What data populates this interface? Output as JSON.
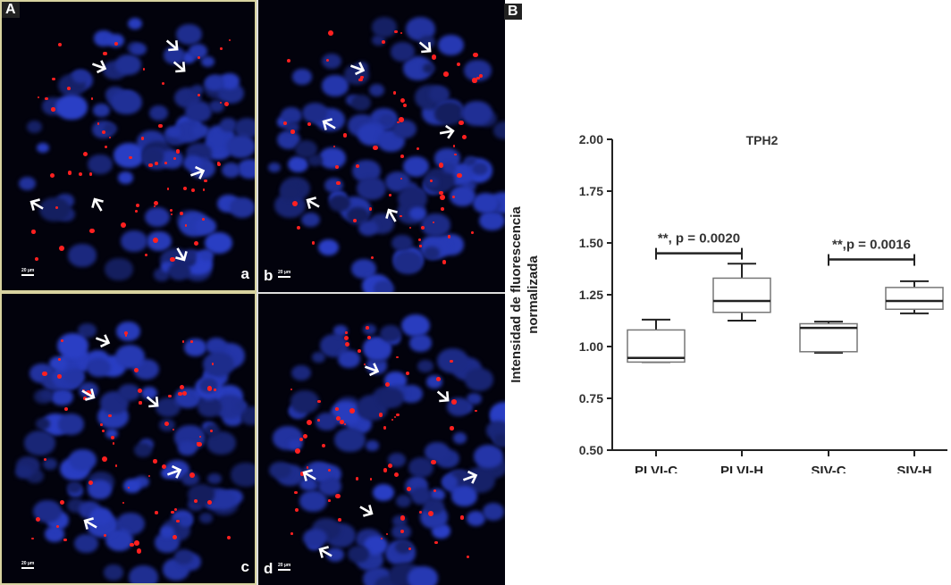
{
  "figure_labels": {
    "panel_A": "A",
    "panel_B": "B"
  },
  "subpanels": [
    {
      "label": "a",
      "scale_bar": "20 µm"
    },
    {
      "label": "b",
      "scale_bar": "20 µm"
    },
    {
      "label": "c",
      "scale_bar": "20 µm"
    },
    {
      "label": "d",
      "scale_bar": "20 µm"
    }
  ],
  "colors": {
    "nuclei_blue": "#2a3aa8",
    "tph2_red": "#ff2020",
    "background": "#02020c",
    "arrow": "#ffffff"
  },
  "chart_data": {
    "type": "box",
    "title": "TPH2",
    "xlabel": "",
    "ylabel_line1": "Intensidad de fluorescencia",
    "ylabel_line2": "normalizada",
    "ylim": [
      0.5,
      2.0
    ],
    "yticks": [
      "0.50",
      "0.75",
      "1.00",
      "1.25",
      "1.50",
      "1.75",
      "2.00"
    ],
    "grid": false,
    "categories": [
      "PLVI-C",
      "PLVI-H",
      "SIV-C",
      "SIV-H"
    ],
    "boxes": [
      {
        "min": 0.925,
        "q1": 0.925,
        "median": 0.945,
        "q3": 1.08,
        "max": 1.13
      },
      {
        "min": 1.125,
        "q1": 1.165,
        "median": 1.22,
        "q3": 1.33,
        "max": 1.4
      },
      {
        "min": 0.97,
        "q1": 0.975,
        "median": 1.09,
        "q3": 1.11,
        "max": 1.12
      },
      {
        "min": 1.16,
        "q1": 1.18,
        "median": 1.22,
        "q3": 1.285,
        "max": 1.315
      }
    ],
    "annotations": [
      {
        "from": "PLVI-C",
        "to": "PLVI-H",
        "y": 1.45,
        "text": "**, p = 0.0020"
      },
      {
        "from": "SIV-C",
        "to": "SIV-H",
        "y": 1.42,
        "text": "**,p = 0.0016"
      }
    ]
  }
}
